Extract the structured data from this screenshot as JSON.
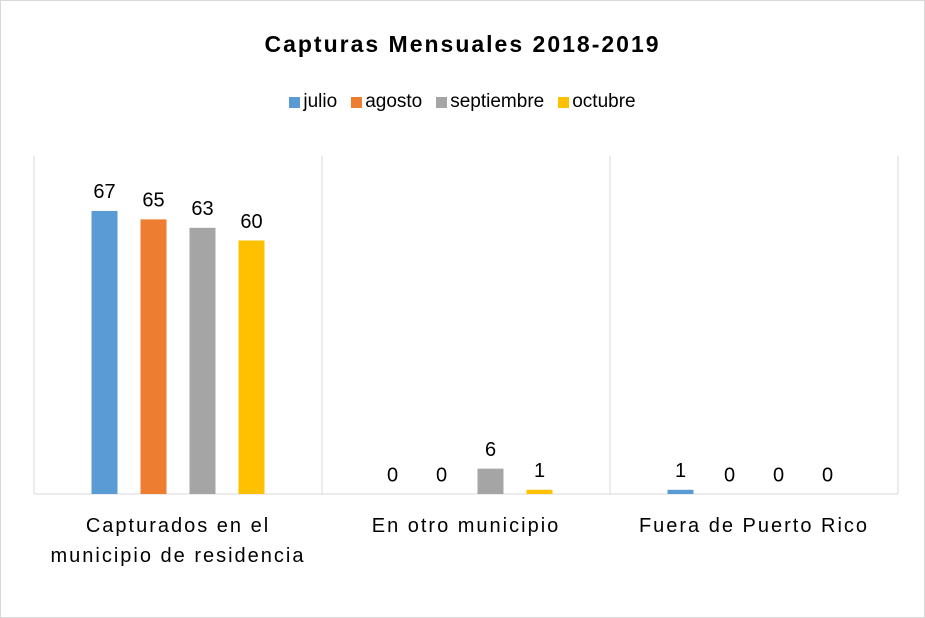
{
  "chart_data": {
    "type": "bar",
    "title": "Capturas Mensuales 2018-2019",
    "categories": [
      "Capturados en el municipio de residencia",
      "En otro municipio",
      "Fuera de Puerto Rico"
    ],
    "series": [
      {
        "name": "julio",
        "color": "#5b9bd5",
        "values": [
          67,
          0,
          1
        ]
      },
      {
        "name": "agosto",
        "color": "#ed7d31",
        "values": [
          65,
          0,
          0
        ]
      },
      {
        "name": "septiembre",
        "color": "#a5a5a5",
        "values": [
          63,
          6,
          0
        ]
      },
      {
        "name": "octubre",
        "color": "#ffc000",
        "values": [
          60,
          1,
          0
        ]
      }
    ],
    "ylim": [
      0,
      80
    ],
    "legend": "top"
  }
}
